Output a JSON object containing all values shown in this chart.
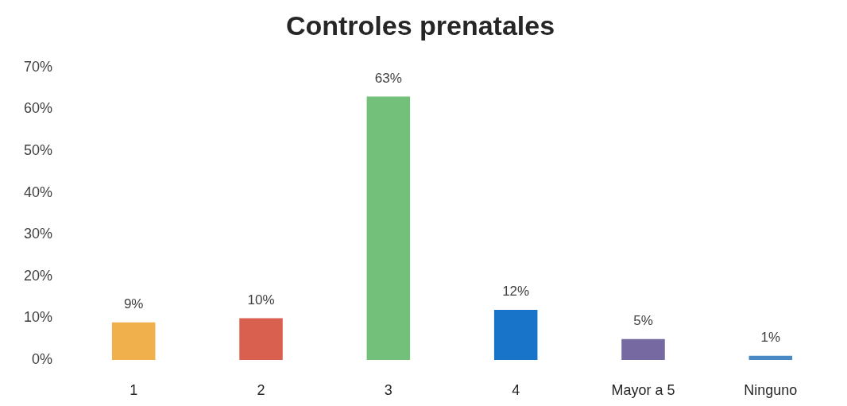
{
  "chart_data": {
    "type": "bar",
    "title": "Controles prenatales",
    "categories": [
      "1",
      "2",
      "3",
      "4",
      "Mayor a 5",
      "Ninguno"
    ],
    "values": [
      9,
      10,
      63,
      12,
      5,
      1
    ],
    "colors": [
      "#f0b04c",
      "#d95f4e",
      "#72c07a",
      "#1874c8",
      "#7668a0",
      "#4a8ac4"
    ],
    "value_labels": [
      "9%",
      "10%",
      "63%",
      "12%",
      "5%",
      "1%"
    ],
    "ylim": [
      0,
      70
    ],
    "yticks": [
      {
        "value": 0,
        "label": "0%"
      },
      {
        "value": 10,
        "label": "10%"
      },
      {
        "value": 20,
        "label": "20%"
      },
      {
        "value": 30,
        "label": "30%"
      },
      {
        "value": 40,
        "label": "40%"
      },
      {
        "value": 50,
        "label": "50%"
      },
      {
        "value": 60,
        "label": "60%"
      },
      {
        "value": 70,
        "label": "70%"
      }
    ]
  }
}
